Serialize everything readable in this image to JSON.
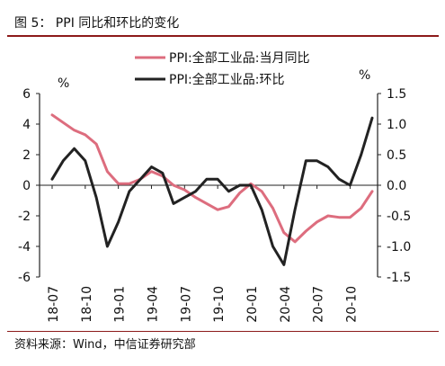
{
  "figure_title": "图 5：   PPI 同比和环比的变化",
  "source": "资料来源：Wind，中信证券研究部",
  "colors": {
    "yoy": "#dd6d7e",
    "mom": "#222222",
    "rule": "#8c1a1a"
  },
  "chart_data": {
    "type": "line",
    "x_tick_labels": [
      "18-07",
      "18-10",
      "19-01",
      "19-04",
      "19-07",
      "19-10",
      "20-01",
      "20-04",
      "20-07",
      "20-10"
    ],
    "x": [
      "18-07",
      "18-08",
      "18-09",
      "18-10",
      "18-11",
      "18-12",
      "19-01",
      "19-02",
      "19-03",
      "19-04",
      "19-05",
      "19-06",
      "19-07",
      "19-08",
      "19-09",
      "19-10",
      "19-11",
      "19-12",
      "20-01",
      "20-02",
      "20-03",
      "20-04",
      "20-05",
      "20-06",
      "20-07",
      "20-08",
      "20-09",
      "20-10",
      "20-11",
      "20-12"
    ],
    "left_axis": {
      "unit": "%",
      "ylim": [
        -6,
        6
      ],
      "ticks": [
        6,
        4,
        2,
        0,
        -2,
        -4,
        -6
      ]
    },
    "right_axis": {
      "unit": "%",
      "ylim": [
        -1.5,
        1.5
      ],
      "ticks": [
        "1.5",
        "1.0",
        "0.5",
        "0.0",
        "-0.5",
        "-1.0",
        "-1.5"
      ]
    },
    "legend_position": "top-right",
    "series": [
      {
        "name": "PPI:全部工业品:当月同比",
        "axis": "left",
        "values": [
          4.6,
          4.1,
          3.6,
          3.3,
          2.7,
          0.9,
          0.1,
          0.1,
          0.4,
          0.9,
          0.6,
          0.0,
          -0.3,
          -0.8,
          -1.2,
          -1.6,
          -1.4,
          -0.5,
          0.1,
          -0.4,
          -1.5,
          -3.1,
          -3.7,
          -3.0,
          -2.4,
          -2.0,
          -2.1,
          -2.1,
          -1.5,
          -0.4
        ]
      },
      {
        "name": "PPI:全部工业品:环比",
        "axis": "right",
        "values": [
          0.1,
          0.4,
          0.6,
          0.4,
          -0.2,
          -1.0,
          -0.6,
          -0.1,
          0.1,
          0.3,
          0.2,
          -0.3,
          -0.2,
          -0.1,
          0.1,
          0.1,
          -0.1,
          0.0,
          0.0,
          -0.4,
          -1.0,
          -1.3,
          -0.4,
          0.4,
          0.4,
          0.3,
          0.1,
          0.0,
          0.5,
          1.1
        ]
      }
    ]
  }
}
